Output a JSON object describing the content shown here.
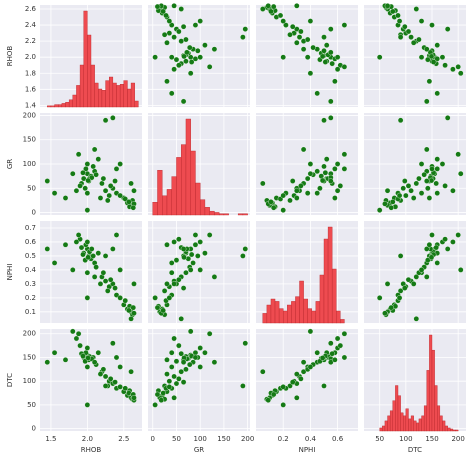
{
  "chart_data": {
    "type": "pairplot",
    "scatter_color": "#157a15",
    "hist_color": "#ee4b50",
    "grid": true,
    "variables": [
      {
        "name": "RHOB",
        "xlim": [
          1.35,
          2.75
        ],
        "xticks": [
          1.5,
          {
            "value": 2,
            "label": "2.0"
          },
          2.5
        ],
        "ylim": [
          1.38,
          2.65
        ],
        "yticks": [
          1.4,
          1.6,
          1.8,
          {
            "value": 2,
            "label": "2.0"
          },
          2.2,
          2.4,
          2.6
        ]
      },
      {
        "name": "GR",
        "xlim": [
          -10,
          205
        ],
        "xticks": [
          0,
          50,
          100,
          150,
          200
        ],
        "ylim": [
          -5,
          205
        ],
        "yticks": [
          0,
          50,
          100,
          150,
          200
        ]
      },
      {
        "name": "NPHI",
        "xlim": [
          0,
          0.75
        ],
        "xticks": [
          0.2,
          0.4,
          0.6
        ],
        "ylim": [
          0.02,
          0.75
        ],
        "yticks": [
          0.1,
          0.2,
          0.3,
          0.4,
          0.5,
          0.6,
          0.7
        ]
      },
      {
        "name": "DTC",
        "xlim": [
          20,
          215
        ],
        "xticks": [
          50,
          100,
          150,
          200
        ],
        "ylim": [
          -5,
          210
        ],
        "yticks": [
          0,
          50,
          100,
          150,
          200
        ]
      }
    ],
    "histograms": [
      {
        "bins": [
          1.45,
          1.5,
          1.55,
          1.6,
          1.65,
          1.7,
          1.75,
          1.8,
          1.85,
          1.9,
          1.95,
          2.0,
          2.05,
          2.1,
          2.15,
          2.2,
          2.25,
          2.3,
          2.35,
          2.4,
          2.45,
          2.5,
          2.55,
          2.6,
          2.65,
          2.7
        ],
        "counts": [
          1,
          1,
          2,
          2,
          3,
          4,
          6,
          10,
          18,
          35,
          80,
          60,
          35,
          20,
          15,
          14,
          22,
          25,
          20,
          18,
          19,
          22,
          15,
          20,
          5
        ]
      },
      {
        "bins": [
          0,
          10,
          20,
          30,
          40,
          50,
          60,
          70,
          80,
          90,
          100,
          110,
          120,
          130,
          140,
          150,
          160,
          170,
          180,
          190,
          200
        ],
        "counts": [
          10,
          35,
          15,
          20,
          30,
          45,
          55,
          75,
          50,
          25,
          12,
          6,
          3,
          2,
          1,
          1,
          0,
          0,
          1,
          1
        ]
      },
      {
        "bins": [
          0.05,
          0.08,
          0.11,
          0.14,
          0.17,
          0.2,
          0.23,
          0.26,
          0.29,
          0.32,
          0.35,
          0.38,
          0.41,
          0.44,
          0.47,
          0.5,
          0.53,
          0.56,
          0.59,
          0.62,
          0.65
        ],
        "counts": [
          8,
          15,
          20,
          18,
          12,
          10,
          15,
          18,
          22,
          35,
          20,
          12,
          10,
          18,
          40,
          70,
          80,
          45,
          10,
          3
        ]
      },
      {
        "bins": [
          50,
          55,
          60,
          65,
          70,
          75,
          80,
          85,
          90,
          95,
          100,
          105,
          110,
          115,
          120,
          125,
          130,
          135,
          140,
          145,
          150,
          155,
          160,
          165,
          170,
          175,
          180,
          185,
          190,
          195,
          200
        ],
        "counts": [
          3,
          5,
          10,
          15,
          20,
          30,
          45,
          35,
          18,
          15,
          22,
          12,
          15,
          10,
          8,
          12,
          15,
          25,
          60,
          95,
          80,
          45,
          25,
          15,
          10,
          5,
          3,
          2,
          1,
          1
        ]
      }
    ],
    "samples": [
      [
        1.95,
        70,
        0.52,
        150
      ],
      [
        2.0,
        80,
        0.55,
        155
      ],
      [
        2.02,
        65,
        0.5,
        145
      ],
      [
        1.98,
        90,
        0.58,
        160
      ],
      [
        2.05,
        75,
        0.48,
        148
      ],
      [
        1.92,
        60,
        0.56,
        158
      ],
      [
        2.1,
        85,
        0.45,
        140
      ],
      [
        2.0,
        100,
        0.6,
        170
      ],
      [
        1.9,
        55,
        0.62,
        175
      ],
      [
        2.03,
        70,
        0.53,
        152
      ],
      [
        2.08,
        95,
        0.5,
        150
      ],
      [
        1.97,
        50,
        0.47,
        142
      ],
      [
        2.12,
        78,
        0.42,
        135
      ],
      [
        1.85,
        45,
        0.6,
        190
      ],
      [
        1.88,
        120,
        0.65,
        200
      ],
      [
        2.0,
        40,
        0.38,
        130
      ],
      [
        2.15,
        110,
        0.52,
        160
      ],
      [
        2.06,
        72,
        0.55,
        147
      ],
      [
        1.94,
        82,
        0.51,
        153
      ],
      [
        2.01,
        66,
        0.49,
        149
      ],
      [
        2.25,
        45,
        0.32,
        110
      ],
      [
        2.3,
        35,
        0.28,
        100
      ],
      [
        2.2,
        60,
        0.35,
        120
      ],
      [
        2.35,
        50,
        0.3,
        95
      ],
      [
        2.28,
        25,
        0.25,
        90
      ],
      [
        2.4,
        40,
        0.22,
        85
      ],
      [
        2.22,
        70,
        0.38,
        125
      ],
      [
        2.32,
        55,
        0.33,
        105
      ],
      [
        2.18,
        30,
        0.3,
        115
      ],
      [
        2.38,
        65,
        0.27,
        98
      ],
      [
        2.55,
        20,
        0.12,
        70
      ],
      [
        2.6,
        15,
        0.1,
        65
      ],
      [
        2.62,
        25,
        0.08,
        62
      ],
      [
        2.5,
        30,
        0.15,
        78
      ],
      [
        2.58,
        12,
        0.14,
        80
      ],
      [
        2.64,
        18,
        0.09,
        60
      ],
      [
        2.52,
        28,
        0.18,
        85
      ],
      [
        2.57,
        22,
        0.11,
        75
      ],
      [
        2.45,
        35,
        0.2,
        88
      ],
      [
        2.63,
        10,
        0.13,
        72
      ],
      [
        1.45,
        65,
        0.55,
        140
      ],
      [
        1.55,
        40,
        0.45,
        160
      ],
      [
        1.7,
        30,
        0.58,
        145
      ],
      [
        2.25,
        190,
        0.5,
        90
      ],
      [
        2.35,
        195,
        0.55,
        180
      ],
      [
        2.1,
        130,
        0.35,
        140
      ],
      [
        1.8,
        80,
        0.4,
        205
      ],
      [
        2.4,
        90,
        0.65,
        150
      ],
      [
        2.6,
        60,
        0.05,
        120
      ],
      [
        2.64,
        45,
        0.3,
        65
      ],
      [
        2.0,
        5,
        0.2,
        50
      ],
      [
        2.45,
        100,
        0.4,
        130
      ]
    ]
  }
}
